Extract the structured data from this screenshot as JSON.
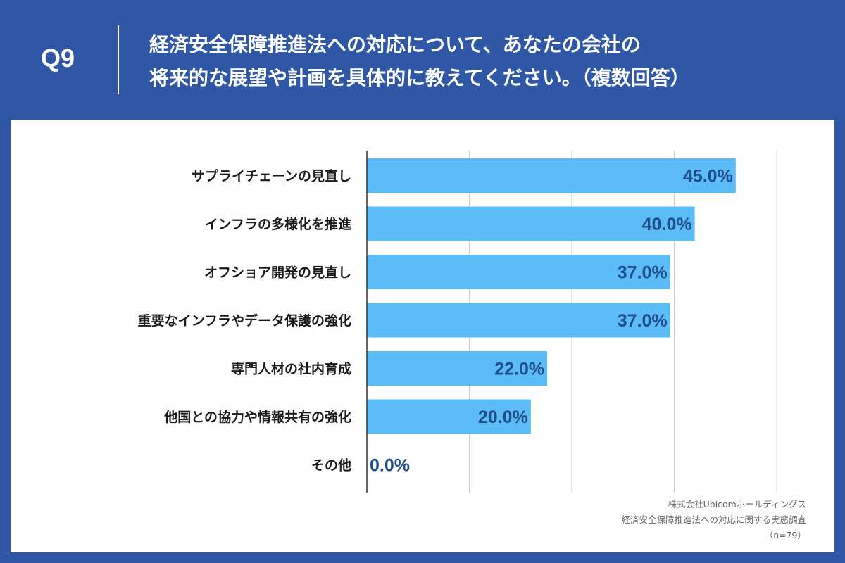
{
  "header": {
    "question_number": "Q9",
    "title_line1": "経済安全保障推進法への対応について、あなたの会社の",
    "title_line2": "将来的な展望や計画を具体的に教えてください。（複数回答）"
  },
  "chart_data": {
    "type": "bar",
    "orientation": "horizontal",
    "categories": [
      "サプライチェーンの見直し",
      "インフラの多様化を推進",
      "オフショア開発の見直し",
      "重要なインフラやデータ保護の強化",
      "専門人材の社内育成",
      "他国との協力や情報共有の強化",
      "その他"
    ],
    "values": [
      45.0,
      40.0,
      37.0,
      37.0,
      22.0,
      20.0,
      0.0
    ],
    "value_labels": [
      "45.0%",
      "40.0%",
      "37.0%",
      "37.0%",
      "22.0%",
      "20.0%",
      "0.0%"
    ],
    "xlim": [
      0,
      50
    ],
    "grid": true,
    "bar_color": "#5bbcf8",
    "label_color": "#1f4e8c"
  },
  "footer": {
    "line1": "株式会社Ubicomホールディングス",
    "line2": "経済安全保障推進法への対応に関する実態調査",
    "line3": "（n=79）"
  },
  "colors": {
    "background": "#2f57a6",
    "panel": "#ffffff",
    "grid": "#cccccc"
  }
}
